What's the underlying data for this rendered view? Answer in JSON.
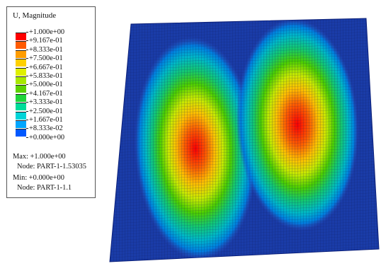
{
  "legend": {
    "title": "U, Magnitude",
    "levels": [
      {
        "label": "+1.000e+00",
        "color": "#ff0000"
      },
      {
        "label": "+9.167e-01",
        "color": "#ff5a00"
      },
      {
        "label": "+8.333e-01",
        "color": "#ff9d00"
      },
      {
        "label": "+7.500e-01",
        "color": "#ffd000"
      },
      {
        "label": "+6.667e-01",
        "color": "#dff000"
      },
      {
        "label": "+5.833e-01",
        "color": "#a8e800"
      },
      {
        "label": "+5.000e-01",
        "color": "#5cd200"
      },
      {
        "label": "+4.167e-01",
        "color": "#1fd43a"
      },
      {
        "label": "+3.333e-01",
        "color": "#00dc9a"
      },
      {
        "label": "+2.500e-01",
        "color": "#00d4d8"
      },
      {
        "label": "+1.667e-01",
        "color": "#00a6ff"
      },
      {
        "label": "+8.333e-02",
        "color": "#0058ff"
      },
      {
        "label": "+0.000e+00",
        "color": "#0000ff"
      }
    ],
    "max_line": "Max: +1.000e+00",
    "max_node": "Node: PART-1-1.53035",
    "min_line": "Min: +0.000e+00",
    "min_node": "Node: PART-1-1.1"
  },
  "plot": {
    "plate_color": "#1a3ca8",
    "edge_color": "#0a1f7a",
    "mesh_color": "#0b1a55"
  }
}
